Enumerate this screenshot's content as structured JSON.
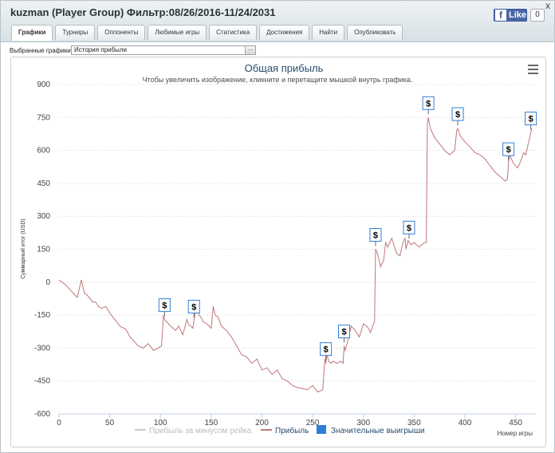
{
  "window": {
    "title": "kuzman (Player Group) Фильтр:08/26/2016-11/24/2031",
    "close_label": "x",
    "like": {
      "label": "Like",
      "count": "0"
    }
  },
  "tabs": [
    "Графики",
    "Турниры",
    "Оппоненты",
    "Любимые игры",
    "Статистика",
    "Достижения",
    "Найти",
    "Опубликовать"
  ],
  "active_tab": 0,
  "selector": {
    "label": "Выбранные графики:",
    "value": "История прибыли"
  },
  "icons": {
    "menu": "hamburger-menu-icon",
    "marker": "dollar-marker-icon",
    "like": "facebook-icon"
  },
  "colors": {
    "series": "#c0767b",
    "series_faded": "#cccccc",
    "significant": "#2f7ed8"
  },
  "chart_data": {
    "type": "line",
    "title": "Общая прибыль",
    "subtitle": "Чтобы увеличить изображение, кликните и перетащите мышкой внутрь графика.",
    "ylabel": "Суммарный итог (USD)",
    "xlabel": "Номер игры",
    "xlim": [
      0,
      470
    ],
    "ylim": [
      -600,
      900
    ],
    "x_ticks": [
      0,
      50,
      100,
      150,
      200,
      250,
      300,
      350,
      400,
      450
    ],
    "y_ticks": [
      900,
      750,
      600,
      450,
      300,
      150,
      0,
      -150,
      -300,
      -450,
      -600
    ],
    "grid": "horizontal dotted",
    "legend": [
      "Прибыль за минусом рейка",
      "Прибыль",
      "Значительные выигрыши"
    ],
    "legend_position": "bottom-center",
    "series": [
      {
        "name": "Прибыль",
        "x": [
          0,
          3,
          6,
          9,
          12,
          15,
          18,
          22,
          25,
          28,
          33,
          36,
          39,
          42,
          46,
          50,
          55,
          60,
          66,
          70,
          74,
          78,
          83,
          88,
          93,
          98,
          101,
          103,
          104,
          106,
          110,
          115,
          118,
          122,
          126,
          128,
          130,
          132,
          135,
          138,
          140,
          142,
          146,
          150,
          152,
          154,
          157,
          160,
          165,
          170,
          175,
          180,
          185,
          190,
          195,
          200,
          205,
          210,
          215,
          220,
          225,
          230,
          235,
          240,
          245,
          250,
          255,
          260,
          262,
          263,
          264,
          266,
          268,
          270,
          274,
          278,
          280,
          281,
          282,
          284,
          288,
          292,
          296,
          300,
          303,
          305,
          307,
          309,
          311,
          312,
          314,
          317,
          320,
          322,
          324,
          328,
          330,
          333,
          336,
          339,
          341,
          342,
          344,
          347,
          350,
          355,
          360,
          362,
          363,
          364,
          366,
          370,
          375,
          380,
          385,
          390,
          392,
          393,
          395,
          398,
          402,
          406,
          410,
          415,
          420,
          425,
          430,
          435,
          440,
          442,
          443,
          444,
          446,
          448,
          452,
          455,
          458,
          460,
          462,
          464,
          466
        ],
        "y": [
          10,
          0,
          -10,
          -25,
          -40,
          -55,
          -70,
          10,
          -50,
          -60,
          -90,
          -90,
          -110,
          -120,
          -110,
          -140,
          -170,
          -200,
          -215,
          -250,
          -270,
          -290,
          -300,
          -280,
          -310,
          -300,
          -290,
          -150,
          -170,
          -180,
          -200,
          -220,
          -200,
          -240,
          -170,
          -195,
          -200,
          -210,
          -110,
          -150,
          -160,
          -180,
          -190,
          -210,
          -110,
          -150,
          -160,
          -200,
          -220,
          -250,
          -290,
          -330,
          -340,
          -370,
          -350,
          -400,
          -390,
          -420,
          -400,
          -440,
          -450,
          -470,
          -480,
          -485,
          -490,
          -470,
          -500,
          -490,
          -350,
          -370,
          -330,
          -360,
          -370,
          -360,
          -370,
          -360,
          -370,
          -290,
          -310,
          -280,
          -200,
          -220,
          -250,
          -190,
          -200,
          -210,
          -230,
          -200,
          -180,
          150,
          130,
          70,
          100,
          180,
          160,
          200,
          170,
          130,
          120,
          180,
          200,
          150,
          190,
          170,
          180,
          160,
          180,
          180,
          720,
          750,
          700,
          660,
          630,
          600,
          580,
          600,
          690,
          700,
          670,
          650,
          630,
          610,
          590,
          580,
          560,
          530,
          500,
          480,
          460,
          470,
          540,
          580,
          560,
          540,
          520,
          550,
          590,
          580,
          620,
          660,
          700
        ],
        "color": "#c0767b"
      }
    ],
    "significant_wins_x": [
      104,
      133,
      263,
      281,
      312,
      345,
      364,
      393,
      443,
      465
    ]
  }
}
